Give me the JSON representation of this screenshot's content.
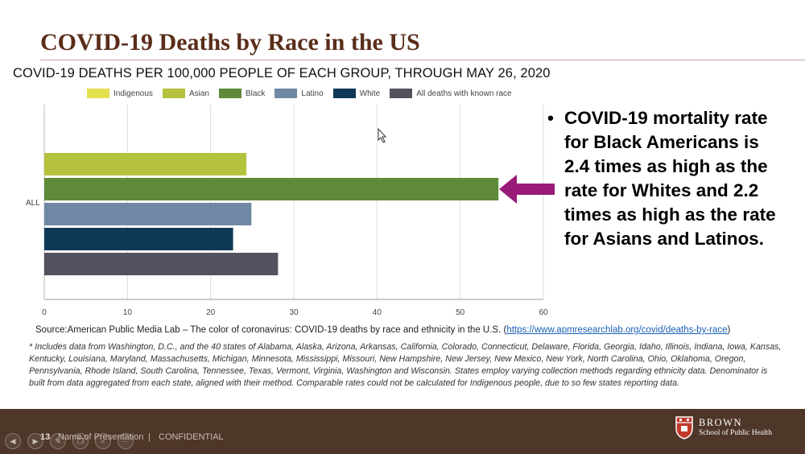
{
  "slide": {
    "title": "COVID-19 Deaths by Race in the US",
    "bullet": "COVID-19 mortality rate for Black Americans is 2.4 times as high as the rate for Whites and 2.2 times as high as the rate for Asians and Latinos.",
    "bullet_marker": "•",
    "source_prefix": "Source:American Public Media Lab – The color of coronavirus: COVID-19 deaths by race and ethnicity in the U.S. (",
    "source_link": "https://www.apmresearchlab.org/covid/deaths-by-race",
    "source_suffix": ")",
    "footnote": "* Includes data from Washington, D.C., and the 40 states of Alabama, Alaska, Arizona, Arkansas, California, Colorado, Connecticut, Delaware, Florida, Georgia, Idaho, Illinois, Indiana, Iowa, Kansas, Kentucky, Louisiana, Maryland, Massachusetts, Michigan, Minnesota, Mississippi, Missouri, New Hampshire, New Jersey, New Mexico, New York, North Carolina, Ohio, Oklahoma, Oregon, Pennsylvania, Rhode Island, South Carolina, Tennessee, Texas, Vermont, Virginia, Washington and Wisconsin. States employ varying collection methods regarding ethnicity data. Denominator is built from data aggregated from each state, aligned with their method. Comparable rates could not be calculated for Indigenous people, due to so few states reporting data."
  },
  "footer": {
    "slide_number": "13",
    "presentation_name": "Name of Presentation",
    "separator": "|",
    "confidential": "CONFIDENTIAL",
    "logo_name": "BROWN",
    "logo_school": "School of Public Health",
    "background_color": "#4e3629",
    "nav_icons": [
      "arrow-left-icon",
      "arrow-right-icon",
      "pencil-icon",
      "copy-icon",
      "zoom-icon",
      "more-icon"
    ]
  },
  "chart_data": {
    "type": "bar",
    "orientation": "horizontal",
    "title": "COVID-19 DEATHS PER 100,000 PEOPLE OF EACH GROUP, THROUGH MAY 26, 2020",
    "categories": [
      "ALL"
    ],
    "series": [
      {
        "name": "Indigenous",
        "color": "#e3e04e",
        "values": [
          null
        ]
      },
      {
        "name": "Asian",
        "color": "#b5c23d",
        "values": [
          24.3
        ]
      },
      {
        "name": "Black",
        "color": "#5e8a3a",
        "values": [
          54.6
        ]
      },
      {
        "name": "Latino",
        "color": "#6f88a4",
        "values": [
          24.9
        ]
      },
      {
        "name": "White",
        "color": "#0f3a57",
        "values": [
          22.7
        ]
      },
      {
        "name": "All deaths with known race",
        "color": "#54525f",
        "values": [
          28.1
        ]
      }
    ],
    "xlim": [
      0,
      60
    ],
    "xticks": [
      0,
      10,
      20,
      30,
      40,
      50,
      60
    ],
    "grid": true,
    "legend_position": "top",
    "annotation_arrow_color": "#9a1a7a"
  }
}
